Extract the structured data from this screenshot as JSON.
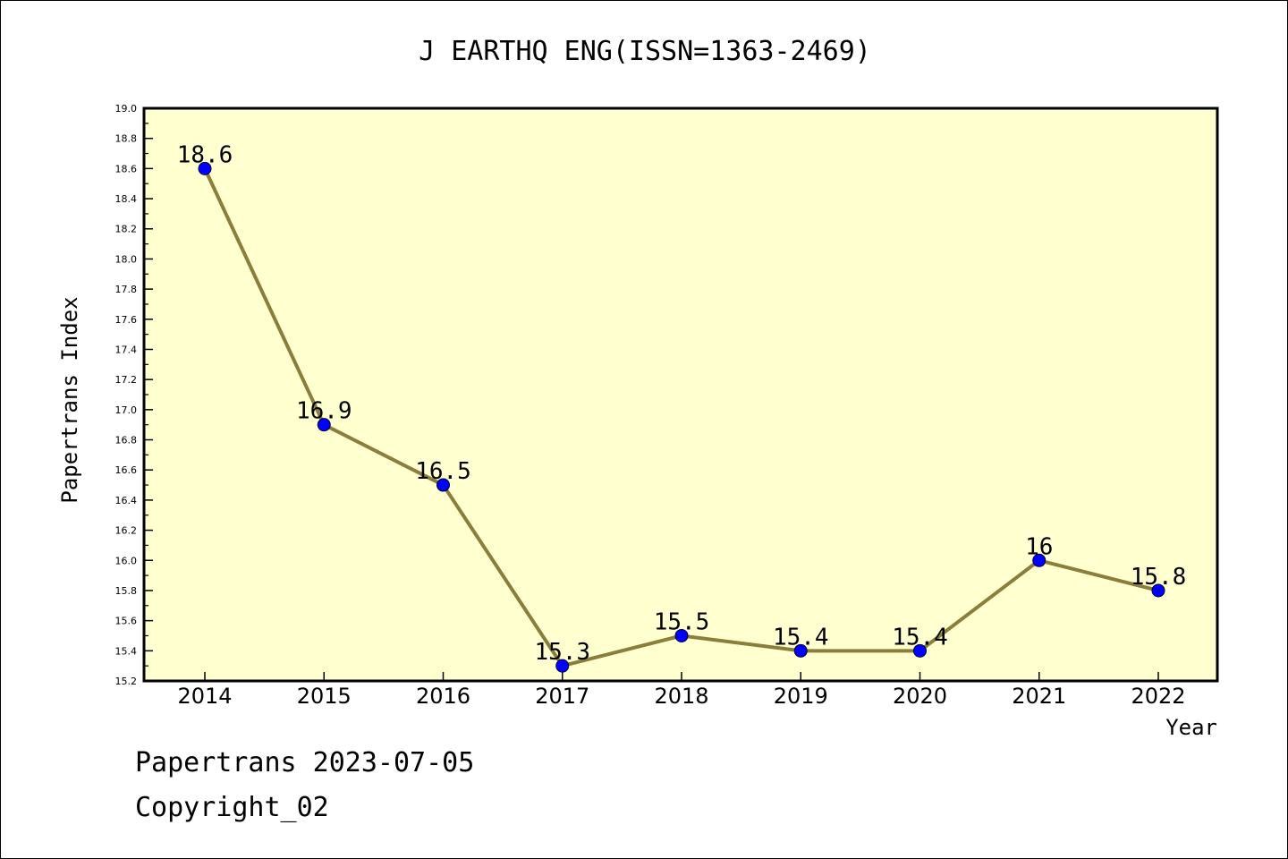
{
  "chart_data": {
    "type": "line",
    "title": "J EARTHQ ENG(ISSN=1363-2469)",
    "xlabel": "Year",
    "ylabel": "Papertrans Index",
    "categories": [
      "2014",
      "2015",
      "2016",
      "2017",
      "2018",
      "2019",
      "2020",
      "2021",
      "2022"
    ],
    "series": [
      {
        "values": [
          18.6,
          16.9,
          16.5,
          15.3,
          15.5,
          15.4,
          15.4,
          16.0,
          15.8
        ],
        "data_labels": [
          "18.6",
          "16.9",
          "16.5",
          "15.3",
          "15.5",
          "15.4",
          "15.4",
          "16",
          "15.8"
        ]
      }
    ],
    "ylim": [
      15.2,
      19.0
    ],
    "y_ticks": [
      "15.2",
      "15.4",
      "15.6",
      "15.8",
      "16.0",
      "16.2",
      "16.4",
      "16.6",
      "16.8",
      "17.0",
      "17.2",
      "17.4",
      "17.6",
      "17.8",
      "18.0",
      "18.2",
      "18.4",
      "18.6",
      "18.8",
      "19.0"
    ],
    "grid": false,
    "legend": "none",
    "colors": {
      "plot_background": "#ffffd0",
      "line": "#8b7d3a",
      "marker": "#0000ff",
      "frame": "#000000"
    }
  },
  "footer": {
    "line1": "Papertrans 2023-07-05",
    "line2": "Copyright_02"
  }
}
